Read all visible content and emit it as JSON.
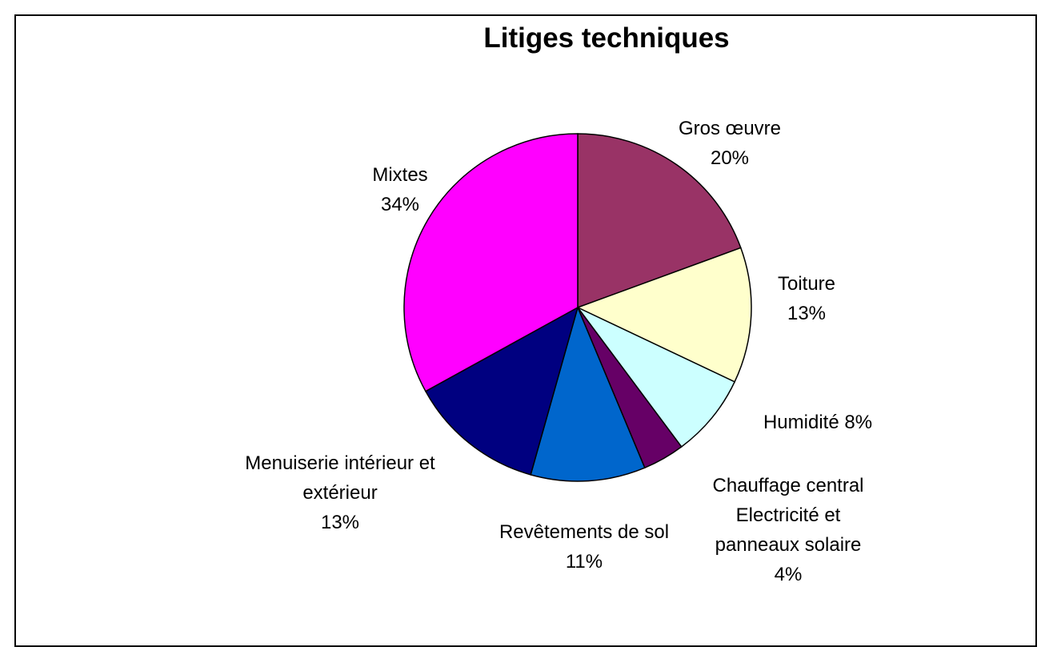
{
  "chart_data": {
    "type": "pie",
    "title": "Litiges techniques",
    "categories": [
      "Gros œuvre",
      "Toiture",
      "Humidité",
      "Chauffage central Electricité et panneaux solaire",
      "Revêtements de sol",
      "Menuiserie intérieur et extérieur",
      "Mixtes"
    ],
    "values": [
      20,
      13,
      8,
      4,
      11,
      13,
      34
    ],
    "value_labels": [
      "20%",
      "13%",
      "8%",
      "4%",
      "11%",
      "13%",
      "34%"
    ],
    "colors": [
      "#993366",
      "#ffffcc",
      "#ccffff",
      "#660066",
      "#0066cc",
      "#000080",
      "#ff00ff"
    ]
  }
}
